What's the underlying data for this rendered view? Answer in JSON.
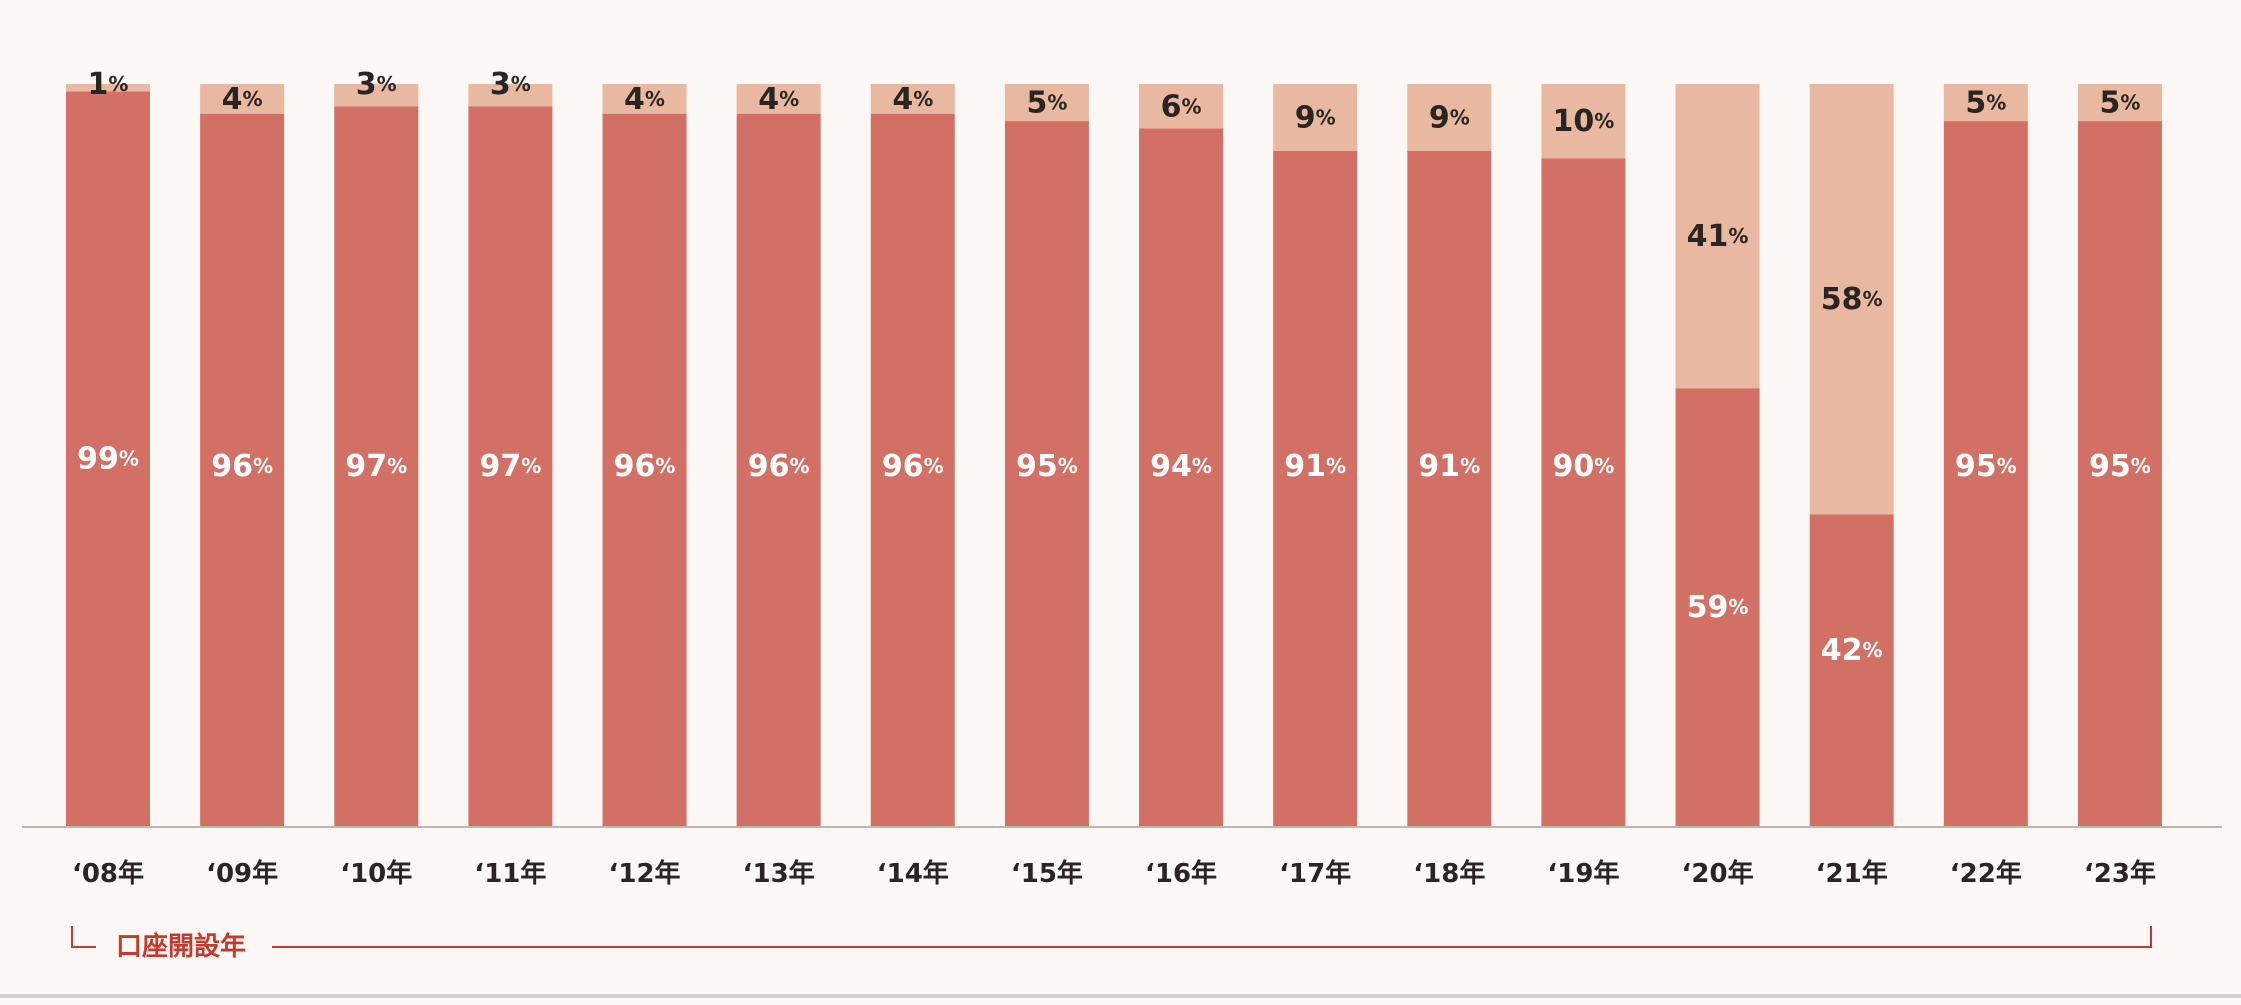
{
  "colors": {
    "background": "#fbf7f4",
    "bottom_series": "#d27065",
    "top_series": "#e8b8a0",
    "axis_line": "#bdb6b1",
    "label_dark": "#2a2522",
    "label_light": "#ffffff",
    "bracket": "#c23b30"
  },
  "chart_data": {
    "type": "bar",
    "stacked": true,
    "percent_stacked": true,
    "categories": [
      "‘08年",
      "‘09年",
      "‘10年",
      "‘11年",
      "‘12年",
      "‘13年",
      "‘14年",
      "‘15年",
      "‘16年",
      "‘17年",
      "‘18年",
      "‘19年",
      "‘20年",
      "‘21年",
      "‘22年",
      "‘23年"
    ],
    "series": [
      {
        "values": [
          99,
          96,
          97,
          97,
          96,
          96,
          96,
          95,
          94,
          91,
          91,
          90,
          59,
          42,
          95,
          95
        ]
      },
      {
        "values": [
          1,
          4,
          3,
          3,
          4,
          4,
          4,
          5,
          6,
          9,
          9,
          10,
          41,
          58,
          5,
          5
        ]
      }
    ],
    "value_suffix": "%",
    "ylim": [
      0,
      100
    ],
    "grid": false,
    "xlabel": "口座開設年"
  }
}
